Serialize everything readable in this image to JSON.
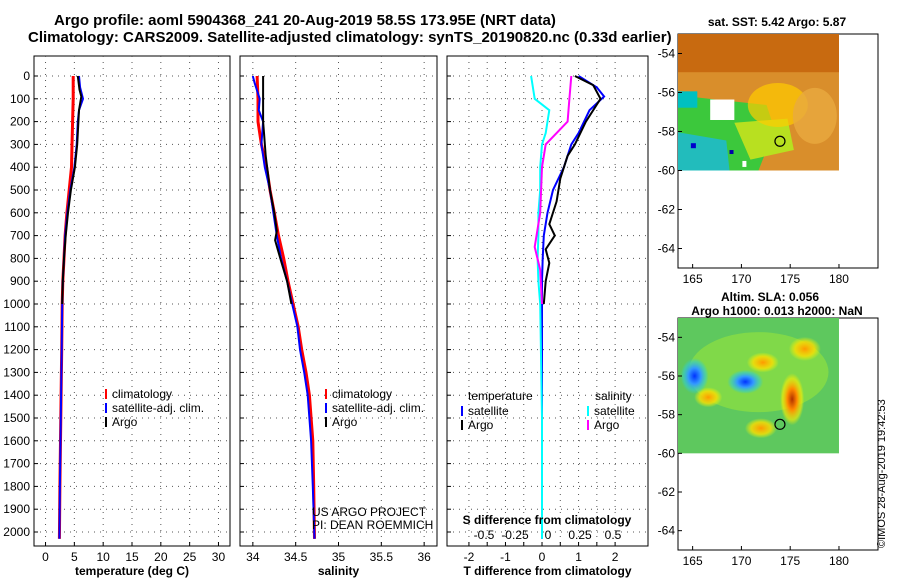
{
  "header": {
    "line1": "Argo profile: aoml 5904368_241 20-Aug-2019 58.5S 173.95E (NRT data)",
    "line2": "Climatology: CARS2009. Satellite-adjusted climatology: synTS_20190820.nc (0.33d earlier)"
  },
  "colors": {
    "climatology": "#ff0000",
    "satellite": "#0000ff",
    "argo": "#000000",
    "sat_salinity": "#00ffff",
    "argo_salinity": "#ff00ff"
  },
  "depth_ticks": [
    0,
    100,
    200,
    300,
    400,
    500,
    600,
    700,
    800,
    900,
    1000,
    1100,
    1200,
    1300,
    1400,
    1500,
    1600,
    1700,
    1800,
    1900,
    2000
  ],
  "chart_data": [
    {
      "type": "line",
      "xlabel": "temperature (deg C)",
      "xticks": [
        0,
        5,
        10,
        15,
        20,
        25,
        30
      ],
      "xlim": [
        -2,
        32
      ],
      "ylim": [
        2060,
        0
      ],
      "legend": [
        "climatology",
        "satellite-adj. clim.",
        "Argo"
      ],
      "series": [
        {
          "name": "climatology",
          "color": "#ff0000",
          "points": [
            [
              4.8,
              0
            ],
            [
              4.8,
              100
            ],
            [
              4.7,
              200
            ],
            [
              4.6,
              300
            ],
            [
              4.5,
              400
            ],
            [
              4.1,
              500
            ],
            [
              3.7,
              600
            ],
            [
              3.4,
              700
            ],
            [
              3.2,
              800
            ],
            [
              3.0,
              900
            ],
            [
              2.9,
              1000
            ],
            [
              2.8,
              1200
            ],
            [
              2.7,
              1400
            ],
            [
              2.6,
              1600
            ],
            [
              2.5,
              1800
            ],
            [
              2.4,
              2030
            ]
          ]
        },
        {
          "name": "satellite-adj. clim.",
          "color": "#0000ff",
          "points": [
            [
              5.8,
              0
            ],
            [
              6.0,
              50
            ],
            [
              6.5,
              100
            ],
            [
              5.8,
              150
            ],
            [
              5.6,
              200
            ],
            [
              5.4,
              300
            ],
            [
              5.0,
              400
            ],
            [
              4.3,
              500
            ],
            [
              3.8,
              600
            ],
            [
              3.4,
              700
            ],
            [
              3.2,
              800
            ],
            [
              3.0,
              900
            ],
            [
              2.9,
              1000
            ],
            [
              2.8,
              1200
            ],
            [
              2.7,
              1400
            ],
            [
              2.6,
              1600
            ],
            [
              2.5,
              1800
            ],
            [
              2.4,
              2030
            ]
          ]
        },
        {
          "name": "Argo",
          "color": "#000000",
          "points": [
            [
              5.6,
              0
            ],
            [
              5.9,
              60
            ],
            [
              6.2,
              90
            ],
            [
              5.8,
              150
            ],
            [
              5.7,
              200
            ],
            [
              5.5,
              300
            ],
            [
              5.1,
              400
            ],
            [
              4.4,
              500
            ],
            [
              3.9,
              600
            ],
            [
              3.5,
              700
            ],
            [
              3.2,
              800
            ],
            [
              3.0,
              900
            ],
            [
              2.9,
              1000
            ]
          ]
        }
      ]
    },
    {
      "type": "line",
      "xlabel": "salinity",
      "xticks": [
        34,
        34.5,
        35,
        35.5,
        36
      ],
      "xlim": [
        33.85,
        36.15
      ],
      "ylim": [
        2060,
        0
      ],
      "legend": [
        "climatology",
        "satellite-adj. clim.",
        "Argo"
      ],
      "notes": [
        "US ARGO PROJECT",
        "PI: DEAN ROEMMICH"
      ],
      "series": [
        {
          "name": "climatology",
          "color": "#ff0000",
          "points": [
            [
              34.05,
              0
            ],
            [
              34.06,
              100
            ],
            [
              34.06,
              200
            ],
            [
              34.1,
              300
            ],
            [
              34.16,
              400
            ],
            [
              34.2,
              500
            ],
            [
              34.25,
              600
            ],
            [
              34.3,
              700
            ],
            [
              34.36,
              800
            ],
            [
              34.41,
              900
            ],
            [
              34.47,
              1000
            ],
            [
              34.53,
              1100
            ],
            [
              34.57,
              1200
            ],
            [
              34.62,
              1300
            ],
            [
              34.66,
              1400
            ],
            [
              34.68,
              1500
            ],
            [
              34.7,
              1600
            ],
            [
              34.71,
              1800
            ],
            [
              34.72,
              2030
            ]
          ]
        },
        {
          "name": "satellite-adj. clim.",
          "color": "#0000ff",
          "points": [
            [
              34.0,
              0
            ],
            [
              34.02,
              30
            ],
            [
              34.08,
              100
            ],
            [
              34.07,
              150
            ],
            [
              34.12,
              200
            ],
            [
              34.1,
              300
            ],
            [
              34.14,
              400
            ],
            [
              34.2,
              500
            ],
            [
              34.24,
              600
            ],
            [
              34.28,
              700
            ],
            [
              34.33,
              800
            ],
            [
              34.4,
              900
            ],
            [
              34.46,
              1000
            ],
            [
              34.52,
              1100
            ],
            [
              34.55,
              1200
            ],
            [
              34.6,
              1300
            ],
            [
              34.64,
              1400
            ],
            [
              34.66,
              1500
            ],
            [
              34.68,
              1600
            ],
            [
              34.7,
              1800
            ],
            [
              34.72,
              2030
            ]
          ]
        },
        {
          "name": "Argo",
          "color": "#000000",
          "points": [
            [
              34.12,
              0
            ],
            [
              34.12,
              100
            ],
            [
              34.12,
              200
            ],
            [
              34.13,
              250
            ],
            [
              34.15,
              350
            ],
            [
              34.2,
              500
            ],
            [
              34.25,
              600
            ],
            [
              34.28,
              680
            ],
            [
              34.26,
              720
            ],
            [
              34.32,
              800
            ],
            [
              34.4,
              900
            ],
            [
              34.45,
              1000
            ]
          ]
        }
      ]
    },
    {
      "type": "line",
      "xlabel": "T difference from climatology",
      "title": "S difference from climatology",
      "xticks": [
        -2,
        -1.5,
        -1,
        -0.5,
        0,
        0.5,
        1,
        1.5,
        2
      ],
      "xtick_labels": [
        "-2",
        "",
        "-1",
        "",
        "0",
        "",
        "1",
        "",
        "2"
      ],
      "xlim": [
        -2.6,
        2.9
      ],
      "s_ticks": [
        "-0.5",
        "-0.25",
        "0",
        "0.25",
        "0.5"
      ],
      "legend_left": {
        "title": "temperature",
        "items": [
          "satellite",
          "Argo"
        ]
      },
      "legend_right": {
        "title": "salinity",
        "items": [
          "satellite",
          "Argo"
        ]
      },
      "ylim": [
        2060,
        0
      ],
      "series": [
        {
          "name": "temperature satellite",
          "color": "#0000ff",
          "points": [
            [
              1.0,
              0
            ],
            [
              1.5,
              50
            ],
            [
              1.7,
              90
            ],
            [
              1.3,
              150
            ],
            [
              1.0,
              250
            ],
            [
              0.8,
              300
            ],
            [
              0.6,
              400
            ],
            [
              0.3,
              500
            ],
            [
              0.15,
              600
            ],
            [
              0.05,
              700
            ],
            [
              0.02,
              800
            ],
            [
              0.0,
              900
            ],
            [
              0.0,
              1000
            ],
            [
              0.0,
              1500
            ],
            [
              0.0,
              2030
            ]
          ]
        },
        {
          "name": "temperature Argo",
          "color": "#000000",
          "points": [
            [
              0.9,
              0
            ],
            [
              1.4,
              40
            ],
            [
              1.6,
              100
            ],
            [
              1.2,
              200
            ],
            [
              0.9,
              300
            ],
            [
              0.7,
              350
            ],
            [
              0.5,
              450
            ],
            [
              0.4,
              550
            ],
            [
              0.2,
              650
            ],
            [
              0.35,
              700
            ],
            [
              0.1,
              760
            ],
            [
              0.2,
              820
            ],
            [
              0.1,
              900
            ],
            [
              0.05,
              1000
            ]
          ]
        },
        {
          "name": "salinity satellite",
          "color": "#00ffff",
          "points": [
            [
              -0.3,
              0
            ],
            [
              -0.2,
              100
            ],
            [
              0.2,
              150
            ],
            [
              0.1,
              250
            ],
            [
              0.0,
              300
            ],
            [
              -0.05,
              400
            ],
            [
              -0.05,
              500
            ],
            [
              -0.1,
              600
            ],
            [
              -0.1,
              700
            ],
            [
              -0.12,
              800
            ],
            [
              -0.1,
              900
            ],
            [
              -0.05,
              1000
            ],
            [
              0.0,
              1500
            ],
            [
              0.0,
              2030
            ]
          ]
        },
        {
          "name": "salinity Argo",
          "color": "#ff00ff",
          "points": [
            [
              0.8,
              0
            ],
            [
              0.75,
              100
            ],
            [
              0.7,
              200
            ],
            [
              0.1,
              300
            ],
            [
              0.0,
              400
            ],
            [
              -0.05,
              600
            ],
            [
              -0.2,
              750
            ],
            [
              -0.05,
              850
            ],
            [
              0.0,
              1000
            ]
          ]
        }
      ]
    },
    {
      "type": "heatmap",
      "title": "sat. SST: 5.42 Argo: 5.87",
      "xticks": [
        165,
        170,
        175,
        180
      ],
      "yticks": [
        -54,
        -56,
        -58,
        -60,
        -62,
        -64
      ],
      "argo_marker": {
        "lon": 173.95,
        "lat": -58.5
      }
    },
    {
      "type": "heatmap",
      "title": "Altim. SLA: 0.056",
      "subtitle": "Argo h1000: 0.013 h2000: NaN",
      "xticks": [
        165,
        170,
        175,
        180
      ],
      "yticks": [
        -54,
        -56,
        -58,
        -60,
        -62,
        -64
      ],
      "argo_marker": {
        "lon": 173.95,
        "lat": -58.5
      }
    }
  ],
  "footer": {
    "stamp": "©IMOS 28-Aug-2019 19:42:53"
  }
}
